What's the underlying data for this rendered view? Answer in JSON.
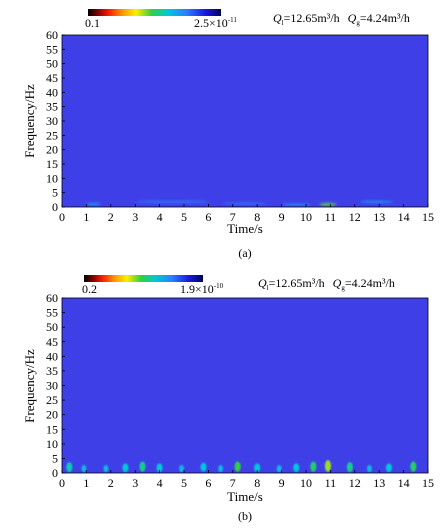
{
  "chart_data": [
    {
      "id": "a",
      "type": "heatmap",
      "panel_label": "(a)",
      "xlabel": "Time/s",
      "ylabel": "Frequency/Hz",
      "xlim": [
        0,
        15
      ],
      "ylim": [
        0,
        60
      ],
      "xticks": [
        0,
        1,
        2,
        3,
        4,
        5,
        6,
        7,
        8,
        9,
        10,
        11,
        12,
        13,
        14,
        15
      ],
      "yticks": [
        0,
        5,
        10,
        15,
        20,
        25,
        30,
        35,
        40,
        45,
        50,
        55,
        60
      ],
      "colorbar": {
        "min_label": "0.1",
        "max_label": "2.5×10",
        "max_exp": "-11"
      },
      "annotation": {
        "ql": "12.65m³/h",
        "qg": "4.24m³/h"
      },
      "background_color": "#3f3fe8",
      "features": [
        {
          "t": 1.3,
          "f": 1.0,
          "w": 0.6,
          "h": 0.8,
          "level": 0.35
        },
        {
          "t": 4.5,
          "f": 1.8,
          "w": 3.0,
          "h": 0.4,
          "level": 0.25
        },
        {
          "t": 7.5,
          "f": 1.2,
          "w": 1.8,
          "h": 0.5,
          "level": 0.22
        },
        {
          "t": 9.6,
          "f": 0.8,
          "w": 1.2,
          "h": 0.5,
          "level": 0.3
        },
        {
          "t": 10.9,
          "f": 0.9,
          "w": 0.7,
          "h": 0.9,
          "level": 0.75
        },
        {
          "t": 12.9,
          "f": 1.8,
          "w": 1.4,
          "h": 0.5,
          "level": 0.35
        }
      ]
    },
    {
      "id": "b",
      "type": "heatmap",
      "panel_label": "(b)",
      "xlabel": "Time/s",
      "ylabel": "Frequency/Hz",
      "xlim": [
        0,
        15
      ],
      "ylim": [
        0,
        60
      ],
      "xticks": [
        0,
        1,
        2,
        3,
        4,
        5,
        6,
        7,
        8,
        9,
        10,
        11,
        12,
        13,
        14,
        15
      ],
      "yticks": [
        0,
        5,
        10,
        15,
        20,
        25,
        30,
        35,
        40,
        45,
        50,
        55,
        60
      ],
      "colorbar": {
        "min_label": "0.2",
        "max_label": "1.9×10",
        "max_exp": "-10"
      },
      "annotation": {
        "ql": "12.65m³/h",
        "qg": "4.24m³/h"
      },
      "background_color": "#3f3fe8",
      "features": [
        {
          "t": 0.3,
          "f": 2.0,
          "w": 0.25,
          "h": 3.5,
          "level": 0.55
        },
        {
          "t": 0.9,
          "f": 1.5,
          "w": 0.2,
          "h": 2.5,
          "level": 0.45
        },
        {
          "t": 1.8,
          "f": 1.5,
          "w": 0.2,
          "h": 2.5,
          "level": 0.45
        },
        {
          "t": 2.6,
          "f": 1.8,
          "w": 0.25,
          "h": 3.0,
          "level": 0.5
        },
        {
          "t": 3.3,
          "f": 2.2,
          "w": 0.25,
          "h": 3.5,
          "level": 0.6
        },
        {
          "t": 4.0,
          "f": 1.8,
          "w": 0.25,
          "h": 3.0,
          "level": 0.5
        },
        {
          "t": 4.9,
          "f": 1.5,
          "w": 0.2,
          "h": 2.5,
          "level": 0.45
        },
        {
          "t": 5.8,
          "f": 2.0,
          "w": 0.25,
          "h": 3.0,
          "level": 0.5
        },
        {
          "t": 6.5,
          "f": 1.5,
          "w": 0.2,
          "h": 2.5,
          "level": 0.45
        },
        {
          "t": 7.2,
          "f": 2.2,
          "w": 0.25,
          "h": 3.5,
          "level": 0.7
        },
        {
          "t": 8.0,
          "f": 1.8,
          "w": 0.25,
          "h": 3.0,
          "level": 0.5
        },
        {
          "t": 8.9,
          "f": 1.5,
          "w": 0.2,
          "h": 2.5,
          "level": 0.45
        },
        {
          "t": 9.6,
          "f": 1.8,
          "w": 0.25,
          "h": 3.0,
          "level": 0.5
        },
        {
          "t": 10.3,
          "f": 2.2,
          "w": 0.25,
          "h": 3.5,
          "level": 0.65
        },
        {
          "t": 10.9,
          "f": 2.4,
          "w": 0.25,
          "h": 4.0,
          "level": 0.8
        },
        {
          "t": 11.8,
          "f": 2.0,
          "w": 0.25,
          "h": 3.5,
          "level": 0.6
        },
        {
          "t": 12.6,
          "f": 1.5,
          "w": 0.2,
          "h": 2.5,
          "level": 0.45
        },
        {
          "t": 13.4,
          "f": 1.8,
          "w": 0.25,
          "h": 3.0,
          "level": 0.5
        },
        {
          "t": 14.4,
          "f": 2.2,
          "w": 0.25,
          "h": 3.5,
          "level": 0.65
        }
      ]
    }
  ]
}
